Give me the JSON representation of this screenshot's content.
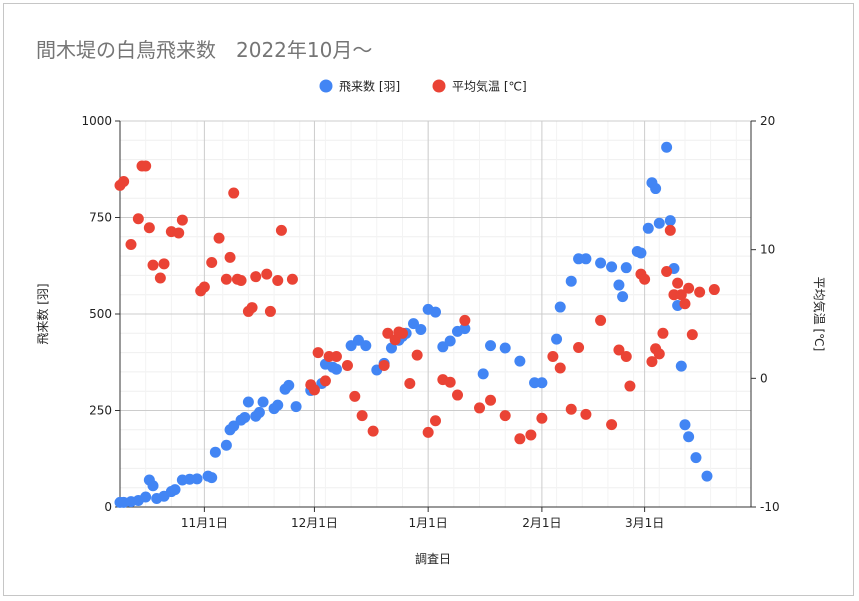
{
  "chart_data": {
    "type": "scatter",
    "title": "間木堤の白鳥飛来数　2022年10月～",
    "xlabel": "調査日",
    "ylabel": "飛来数 [羽]",
    "y2label": "平均気温 [℃]",
    "x_ticks": [
      {
        "date": "2022-11-01",
        "label": "11月1日"
      },
      {
        "date": "2022-12-01",
        "label": "12月1日"
      },
      {
        "date": "2023-01-01",
        "label": "1月1日"
      },
      {
        "date": "2023-02-01",
        "label": "2月1日"
      },
      {
        "date": "2023-03-01",
        "label": "3月1日"
      }
    ],
    "xlim": [
      "2022-10-09",
      "2023-03-30"
    ],
    "ylim": [
      0,
      1000
    ],
    "y_ticks": [
      0,
      250,
      500,
      750,
      1000
    ],
    "y2lim": [
      -10,
      20
    ],
    "y2_ticks": [
      -10,
      0,
      10,
      20
    ],
    "legend_position": "top",
    "grid": true,
    "series": [
      {
        "name": "飛来数 [羽]",
        "axis": "left",
        "color": "#4285f4",
        "points": [
          [
            "2022-10-09",
            12
          ],
          [
            "2022-10-10",
            12
          ],
          [
            "2022-10-12",
            14
          ],
          [
            "2022-10-14",
            17
          ],
          [
            "2022-10-16",
            26
          ],
          [
            "2022-10-17",
            70
          ],
          [
            "2022-10-18",
            55
          ],
          [
            "2022-10-19",
            22
          ],
          [
            "2022-10-21",
            28
          ],
          [
            "2022-10-23",
            40
          ],
          [
            "2022-10-24",
            45
          ],
          [
            "2022-10-26",
            70
          ],
          [
            "2022-10-28",
            72
          ],
          [
            "2022-10-30",
            73
          ],
          [
            "2022-11-02",
            80
          ],
          [
            "2022-11-03",
            76
          ],
          [
            "2022-11-04",
            142
          ],
          [
            "2022-11-07",
            160
          ],
          [
            "2022-11-08",
            200
          ],
          [
            "2022-11-09",
            210
          ],
          [
            "2022-11-11",
            225
          ],
          [
            "2022-11-12",
            232
          ],
          [
            "2022-11-13",
            272
          ],
          [
            "2022-11-15",
            235
          ],
          [
            "2022-11-16",
            245
          ],
          [
            "2022-11-17",
            272
          ],
          [
            "2022-11-20",
            255
          ],
          [
            "2022-11-21",
            264
          ],
          [
            "2022-11-23",
            305
          ],
          [
            "2022-11-24",
            315
          ],
          [
            "2022-11-26",
            260
          ],
          [
            "2022-11-30",
            302
          ],
          [
            "2022-12-03",
            320
          ],
          [
            "2022-12-04",
            370
          ],
          [
            "2022-12-06",
            362
          ],
          [
            "2022-12-07",
            357
          ],
          [
            "2022-12-11",
            418
          ],
          [
            "2022-12-13",
            432
          ],
          [
            "2022-12-15",
            418
          ],
          [
            "2022-12-18",
            355
          ],
          [
            "2022-12-20",
            372
          ],
          [
            "2022-12-22",
            412
          ],
          [
            "2022-12-24",
            432
          ],
          [
            "2022-12-25",
            442
          ],
          [
            "2022-12-26",
            450
          ],
          [
            "2022-12-28",
            475
          ],
          [
            "2022-12-30",
            460
          ],
          [
            "2023-01-01",
            512
          ],
          [
            "2023-01-03",
            505
          ],
          [
            "2023-01-05",
            415
          ],
          [
            "2023-01-07",
            430
          ],
          [
            "2023-01-09",
            455
          ],
          [
            "2023-01-11",
            462
          ],
          [
            "2023-01-16",
            345
          ],
          [
            "2023-01-18",
            418
          ],
          [
            "2023-01-22",
            412
          ],
          [
            "2023-01-26",
            378
          ],
          [
            "2023-01-30",
            322
          ],
          [
            "2023-02-01",
            322
          ],
          [
            "2023-02-05",
            435
          ],
          [
            "2023-02-06",
            518
          ],
          [
            "2023-02-09",
            585
          ],
          [
            "2023-02-11",
            643
          ],
          [
            "2023-02-13",
            643
          ],
          [
            "2023-02-17",
            632
          ],
          [
            "2023-02-20",
            622
          ],
          [
            "2023-02-22",
            575
          ],
          [
            "2023-02-23",
            545
          ],
          [
            "2023-02-24",
            620
          ],
          [
            "2023-02-27",
            662
          ],
          [
            "2023-02-28",
            658
          ],
          [
            "2023-03-02",
            722
          ],
          [
            "2023-03-03",
            840
          ],
          [
            "2023-03-04",
            825
          ],
          [
            "2023-03-05",
            735
          ],
          [
            "2023-03-07",
            932
          ],
          [
            "2023-03-08",
            742
          ],
          [
            "2023-03-09",
            618
          ],
          [
            "2023-03-10",
            522
          ],
          [
            "2023-03-11",
            365
          ],
          [
            "2023-03-12",
            213
          ],
          [
            "2023-03-13",
            182
          ],
          [
            "2023-03-15",
            128
          ],
          [
            "2023-03-18",
            80
          ]
        ]
      },
      {
        "name": "平均気温 [℃]",
        "axis": "right",
        "color": "#ea4335",
        "points": [
          [
            "2022-10-09",
            15.0
          ],
          [
            "2022-10-10",
            15.3
          ],
          [
            "2022-10-12",
            10.4
          ],
          [
            "2022-10-14",
            12.4
          ],
          [
            "2022-10-15",
            16.5
          ],
          [
            "2022-10-16",
            16.5
          ],
          [
            "2022-10-17",
            11.7
          ],
          [
            "2022-10-18",
            8.8
          ],
          [
            "2022-10-20",
            7.8
          ],
          [
            "2022-10-21",
            8.9
          ],
          [
            "2022-10-23",
            11.4
          ],
          [
            "2022-10-25",
            11.3
          ],
          [
            "2022-10-26",
            12.3
          ],
          [
            "2022-10-31",
            6.8
          ],
          [
            "2022-11-01",
            7.1
          ],
          [
            "2022-11-03",
            9.0
          ],
          [
            "2022-11-05",
            10.9
          ],
          [
            "2022-11-07",
            7.7
          ],
          [
            "2022-11-08",
            9.4
          ],
          [
            "2022-11-09",
            14.4
          ],
          [
            "2022-11-10",
            7.7
          ],
          [
            "2022-11-11",
            7.6
          ],
          [
            "2022-11-13",
            5.2
          ],
          [
            "2022-11-14",
            5.5
          ],
          [
            "2022-11-15",
            7.9
          ],
          [
            "2022-11-18",
            8.1
          ],
          [
            "2022-11-19",
            5.2
          ],
          [
            "2022-11-21",
            7.6
          ],
          [
            "2022-11-22",
            11.5
          ],
          [
            "2022-11-25",
            7.7
          ],
          [
            "2022-11-30",
            -0.5
          ],
          [
            "2022-12-01",
            -0.9
          ],
          [
            "2022-12-02",
            2.0
          ],
          [
            "2022-12-04",
            -0.2
          ],
          [
            "2022-12-05",
            1.7
          ],
          [
            "2022-12-07",
            1.7
          ],
          [
            "2022-12-10",
            1.0
          ],
          [
            "2022-12-12",
            -1.4
          ],
          [
            "2022-12-14",
            -2.9
          ],
          [
            "2022-12-17",
            -4.1
          ],
          [
            "2022-12-20",
            1.0
          ],
          [
            "2022-12-21",
            3.5
          ],
          [
            "2022-12-23",
            3.0
          ],
          [
            "2022-12-24",
            3.6
          ],
          [
            "2022-12-25",
            3.5
          ],
          [
            "2022-12-27",
            -0.4
          ],
          [
            "2022-12-29",
            1.8
          ],
          [
            "2023-01-01",
            -4.2
          ],
          [
            "2023-01-03",
            -3.3
          ],
          [
            "2023-01-05",
            -0.1
          ],
          [
            "2023-01-07",
            -0.3
          ],
          [
            "2023-01-09",
            -1.3
          ],
          [
            "2023-01-11",
            4.5
          ],
          [
            "2023-01-15",
            -2.3
          ],
          [
            "2023-01-18",
            -1.7
          ],
          [
            "2023-01-22",
            -2.9
          ],
          [
            "2023-01-26",
            -4.7
          ],
          [
            "2023-01-29",
            -4.4
          ],
          [
            "2023-02-01",
            -3.1
          ],
          [
            "2023-02-04",
            1.7
          ],
          [
            "2023-02-06",
            0.8
          ],
          [
            "2023-02-09",
            -2.4
          ],
          [
            "2023-02-11",
            2.4
          ],
          [
            "2023-02-13",
            -2.8
          ],
          [
            "2023-02-17",
            4.5
          ],
          [
            "2023-02-20",
            -3.6
          ],
          [
            "2023-02-22",
            2.2
          ],
          [
            "2023-02-24",
            1.7
          ],
          [
            "2023-02-25",
            -0.6
          ],
          [
            "2023-02-28",
            8.1
          ],
          [
            "2023-03-01",
            7.7
          ],
          [
            "2023-03-03",
            1.3
          ],
          [
            "2023-03-04",
            2.3
          ],
          [
            "2023-03-05",
            1.9
          ],
          [
            "2023-03-06",
            3.5
          ],
          [
            "2023-03-07",
            8.3
          ],
          [
            "2023-03-08",
            11.5
          ],
          [
            "2023-03-09",
            6.5
          ],
          [
            "2023-03-10",
            7.4
          ],
          [
            "2023-03-11",
            6.5
          ],
          [
            "2023-03-12",
            5.8
          ],
          [
            "2023-03-13",
            7.0
          ],
          [
            "2023-03-14",
            3.4
          ],
          [
            "2023-03-16",
            6.7
          ],
          [
            "2023-03-20",
            6.9
          ]
        ]
      }
    ]
  }
}
